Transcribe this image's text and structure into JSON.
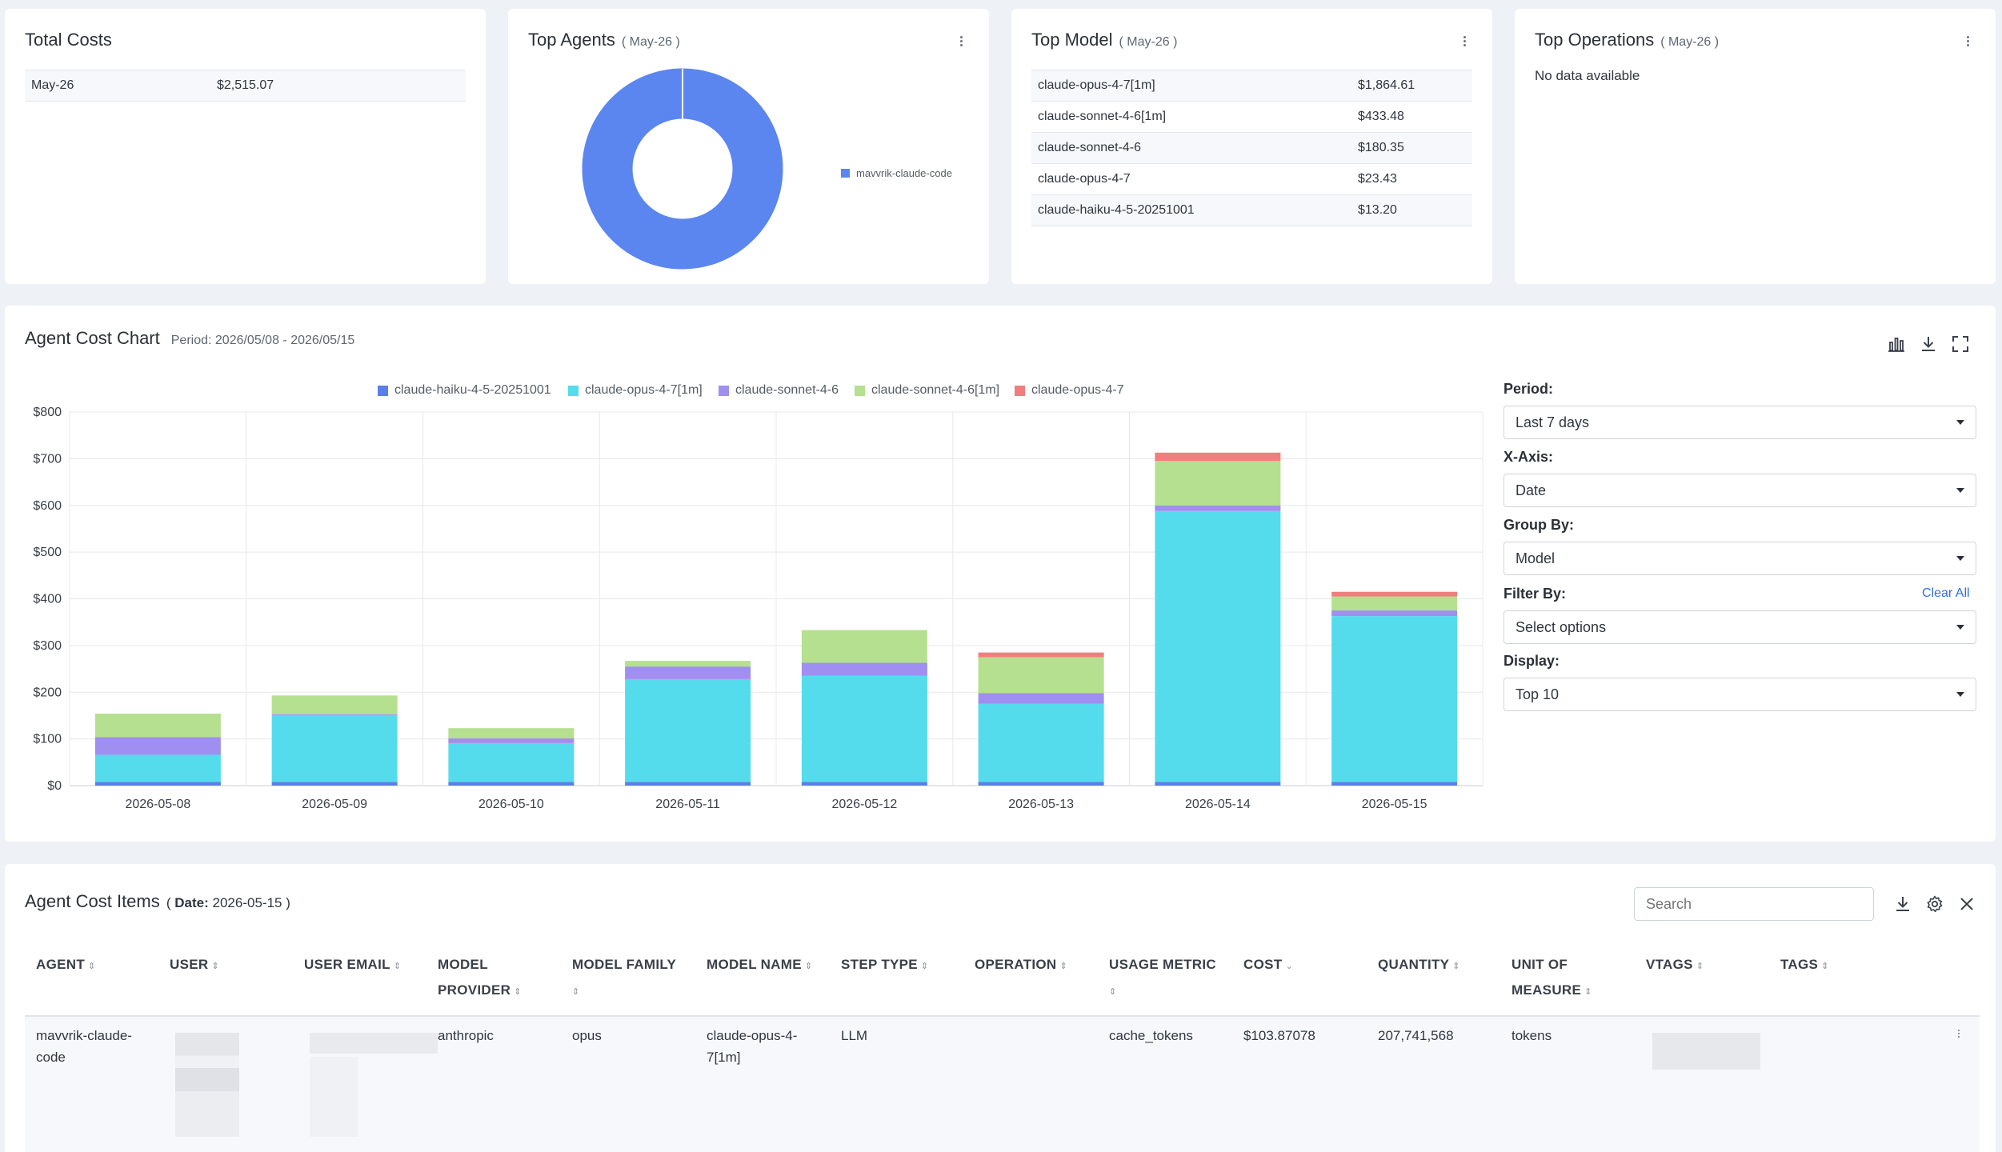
{
  "total_costs": {
    "title": "Total Costs",
    "rows": [
      {
        "period": "May-26",
        "value": "$2,515.07"
      }
    ]
  },
  "top_agents": {
    "title": "Top Agents",
    "subtitle": "( May-26 )",
    "legend": "mavvrik-claude-code",
    "color": "#5b86f0"
  },
  "top_model": {
    "title": "Top Model",
    "subtitle": "( May-26 )",
    "rows": [
      {
        "name": "claude-opus-4-7[1m]",
        "value": "$1,864.61"
      },
      {
        "name": "claude-sonnet-4-6[1m]",
        "value": "$433.48"
      },
      {
        "name": "claude-sonnet-4-6",
        "value": "$180.35"
      },
      {
        "name": "claude-opus-4-7",
        "value": "$23.43"
      },
      {
        "name": "claude-haiku-4-5-20251001",
        "value": "$13.20"
      }
    ]
  },
  "top_operations": {
    "title": "Top Operations",
    "subtitle": "( May-26 )",
    "empty": "No data available"
  },
  "agent_cost_chart": {
    "title": "Agent Cost Chart",
    "period": "Period: 2026/05/08 - 2026/05/15",
    "controls": {
      "period_label": "Period:",
      "period_value": "Last 7 days",
      "xaxis_label": "X-Axis:",
      "xaxis_value": "Date",
      "groupby_label": "Group By:",
      "groupby_value": "Model",
      "filterby_label": "Filter By:",
      "filterby_value": "Select options",
      "clear_all": "Clear All",
      "display_label": "Display:",
      "display_value": "Top 10"
    }
  },
  "chart_data": {
    "type": "bar",
    "stacked": true,
    "categories": [
      "2026-05-08",
      "2026-05-09",
      "2026-05-10",
      "2026-05-11",
      "2026-05-12",
      "2026-05-13",
      "2026-05-14",
      "2026-05-15"
    ],
    "series": [
      {
        "name": "claude-haiku-4-5-20251001",
        "color": "#5b7fe8",
        "values": [
          8,
          8,
          8,
          8,
          8,
          8,
          8,
          8
        ]
      },
      {
        "name": "claude-opus-4-7[1m]",
        "color": "#54dced",
        "values": [
          58,
          143,
          83,
          220,
          227,
          167,
          580,
          355
        ]
      },
      {
        "name": "claude-sonnet-4-6",
        "color": "#9e8ff0",
        "values": [
          38,
          2,
          10,
          27,
          28,
          23,
          12,
          12
        ]
      },
      {
        "name": "claude-sonnet-4-6[1m]",
        "color": "#b5e08f",
        "values": [
          50,
          40,
          22,
          12,
          70,
          77,
          95,
          30
        ]
      },
      {
        "name": "claude-opus-4-7",
        "color": "#f07e7e",
        "values": [
          0,
          0,
          0,
          0,
          0,
          10,
          18,
          10
        ]
      }
    ],
    "y_ticks": [
      "$0",
      "$100",
      "$200",
      "$300",
      "$400",
      "$500",
      "$600",
      "$700",
      "$800"
    ],
    "ylim": [
      0,
      800
    ],
    "grid": true,
    "legend": "top"
  },
  "cost_items": {
    "title": "Agent Cost Items",
    "date_label": "Date:",
    "date_value": "2026-05-15",
    "search_placeholder": "Search",
    "headers": {
      "agent": "AGENT",
      "user": "USER",
      "user_email": "USER EMAIL",
      "model_provider_1": "MODEL",
      "model_provider_2": "PROVIDER",
      "model_family": "MODEL FAMILY",
      "model_name": "MODEL NAME",
      "step_type": "STEP TYPE",
      "operation": "OPERATION",
      "usage_metric": "USAGE METRIC",
      "cost": "COST",
      "quantity": "QUANTITY",
      "uom_1": "UNIT OF",
      "uom_2": "MEASURE",
      "vtags": "VTAGS",
      "tags": "TAGS"
    },
    "row": {
      "agent_1": "mavvrik-claude-",
      "agent_2": "code",
      "model_provider": "anthropic",
      "model_family": "opus",
      "model_name_1": "claude-opus-4-",
      "model_name_2": "7[1m]",
      "step_type": "LLM",
      "usage_metric": "cache_tokens",
      "cost": "$103.87078",
      "quantity": "207,741,568",
      "uom": "tokens"
    }
  }
}
